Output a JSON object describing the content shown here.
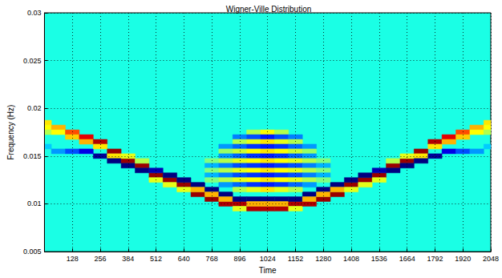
{
  "chart_data": {
    "type": "heatmap",
    "title": "Wigner-Ville Distribution",
    "x_label": "Time",
    "y_label": "Frequency (Hz)",
    "xlim": [
      0,
      2048
    ],
    "xticks": [
      128,
      256,
      384,
      512,
      640,
      768,
      896,
      1024,
      1152,
      1280,
      1408,
      1536,
      1664,
      1792,
      1920,
      2048
    ],
    "ylim": [
      0.005,
      0.03
    ],
    "yticks": [
      0.005,
      0.01,
      0.015,
      0.02,
      0.025,
      0.03
    ],
    "grid": true,
    "color_range": [
      -0.8,
      1.2
    ],
    "cells": [
      [
        0,
        0.0185,
        0.5
      ],
      [
        0,
        0.018,
        0.45
      ],
      [
        0,
        0.0175,
        0.3
      ],
      [
        0,
        0.016,
        -0.15
      ],
      [
        64,
        0.018,
        0.6
      ],
      [
        64,
        0.0175,
        0.45
      ],
      [
        64,
        0.0155,
        -0.25
      ],
      [
        128,
        0.0175,
        0.8
      ],
      [
        128,
        0.017,
        0.55
      ],
      [
        128,
        0.0155,
        -0.4
      ],
      [
        192,
        0.017,
        1.0
      ],
      [
        192,
        0.0165,
        0.6
      ],
      [
        192,
        0.0155,
        -0.6
      ],
      [
        256,
        0.0165,
        1.1
      ],
      [
        256,
        0.016,
        0.5
      ],
      [
        256,
        0.015,
        -0.75
      ],
      [
        320,
        0.0155,
        1.15
      ],
      [
        320,
        0.015,
        0.5
      ],
      [
        320,
        0.0145,
        -0.8
      ],
      [
        384,
        0.0145,
        1.15
      ],
      [
        384,
        0.015,
        0.4
      ],
      [
        384,
        0.014,
        -0.8
      ],
      [
        448,
        0.014,
        1.15
      ],
      [
        448,
        0.0145,
        0.3
      ],
      [
        448,
        0.0135,
        -0.8
      ],
      [
        512,
        0.013,
        1.15
      ],
      [
        512,
        0.0135,
        -0.7
      ],
      [
        512,
        0.0125,
        0.4
      ],
      [
        576,
        0.0125,
        1.15
      ],
      [
        576,
        0.013,
        -0.8
      ],
      [
        576,
        0.012,
        0.4
      ],
      [
        640,
        0.012,
        1.15
      ],
      [
        640,
        0.0125,
        -0.8
      ],
      [
        640,
        0.0115,
        0.4
      ],
      [
        704,
        0.011,
        1.15
      ],
      [
        704,
        0.012,
        -0.8
      ],
      [
        704,
        0.0115,
        0.6
      ],
      [
        768,
        0.0105,
        1.15
      ],
      [
        768,
        0.0115,
        -0.8
      ],
      [
        768,
        0.011,
        0.6
      ],
      [
        832,
        0.01,
        1.1
      ],
      [
        832,
        0.011,
        -0.8
      ],
      [
        832,
        0.0105,
        0.6
      ],
      [
        896,
        0.01,
        1.1
      ],
      [
        896,
        0.0105,
        -0.8
      ],
      [
        896,
        0.0095,
        0.4
      ],
      [
        960,
        0.0095,
        1.1
      ],
      [
        960,
        0.0105,
        -0.8
      ],
      [
        960,
        0.01,
        0.6
      ],
      [
        1024,
        0.0095,
        1.1
      ],
      [
        1024,
        0.0105,
        -0.8
      ],
      [
        1024,
        0.01,
        0.6
      ],
      [
        1088,
        0.0095,
        1.1
      ],
      [
        1088,
        0.0105,
        -0.8
      ],
      [
        1088,
        0.01,
        0.6
      ],
      [
        1152,
        0.01,
        1.1
      ],
      [
        1152,
        0.0105,
        -0.8
      ],
      [
        1152,
        0.0095,
        0.4
      ],
      [
        1216,
        0.01,
        1.1
      ],
      [
        1216,
        0.011,
        -0.8
      ],
      [
        1216,
        0.0105,
        0.6
      ],
      [
        1280,
        0.0105,
        1.15
      ],
      [
        1280,
        0.0115,
        -0.8
      ],
      [
        1280,
        0.011,
        0.6
      ],
      [
        1344,
        0.011,
        1.15
      ],
      [
        1344,
        0.012,
        -0.8
      ],
      [
        1344,
        0.0115,
        0.6
      ],
      [
        1408,
        0.012,
        1.15
      ],
      [
        1408,
        0.0125,
        -0.8
      ],
      [
        1408,
        0.0115,
        0.4
      ],
      [
        1472,
        0.0125,
        1.15
      ],
      [
        1472,
        0.013,
        -0.8
      ],
      [
        1472,
        0.012,
        0.4
      ],
      [
        1536,
        0.013,
        1.15
      ],
      [
        1536,
        0.0135,
        -0.7
      ],
      [
        1536,
        0.0125,
        0.4
      ],
      [
        1600,
        0.014,
        1.15
      ],
      [
        1600,
        0.0145,
        0.3
      ],
      [
        1600,
        0.0135,
        -0.8
      ],
      [
        1664,
        0.0145,
        1.15
      ],
      [
        1664,
        0.015,
        0.4
      ],
      [
        1664,
        0.014,
        -0.8
      ],
      [
        1728,
        0.0155,
        1.15
      ],
      [
        1728,
        0.015,
        0.5
      ],
      [
        1728,
        0.0145,
        -0.8
      ],
      [
        1792,
        0.0165,
        1.1
      ],
      [
        1792,
        0.016,
        0.5
      ],
      [
        1792,
        0.015,
        -0.75
      ],
      [
        1856,
        0.017,
        1.0
      ],
      [
        1856,
        0.0165,
        0.6
      ],
      [
        1856,
        0.0155,
        -0.6
      ],
      [
        1920,
        0.0175,
        0.8
      ],
      [
        1920,
        0.017,
        0.55
      ],
      [
        1920,
        0.0155,
        -0.4
      ],
      [
        1984,
        0.018,
        0.6
      ],
      [
        1984,
        0.0175,
        0.45
      ],
      [
        1984,
        0.0155,
        -0.25
      ],
      [
        2048,
        0.0185,
        0.5
      ],
      [
        2048,
        0.018,
        0.45
      ],
      [
        2048,
        0.0175,
        0.3
      ],
      [
        2048,
        0.016,
        -0.15
      ],
      [
        960,
        0.0175,
        0.3
      ],
      [
        1024,
        0.0175,
        0.45
      ],
      [
        1088,
        0.0175,
        0.3
      ],
      [
        896,
        0.017,
        -0.3
      ],
      [
        960,
        0.017,
        -0.4
      ],
      [
        1024,
        0.017,
        -0.5
      ],
      [
        1088,
        0.017,
        -0.4
      ],
      [
        1152,
        0.017,
        -0.3
      ],
      [
        896,
        0.0165,
        0.3
      ],
      [
        960,
        0.0165,
        0.4
      ],
      [
        1024,
        0.0165,
        0.5
      ],
      [
        1088,
        0.0165,
        0.4
      ],
      [
        1152,
        0.0165,
        0.3
      ],
      [
        832,
        0.016,
        -0.25
      ],
      [
        896,
        0.016,
        -0.35
      ],
      [
        960,
        0.016,
        -0.45
      ],
      [
        1024,
        0.016,
        -0.5
      ],
      [
        1088,
        0.016,
        -0.45
      ],
      [
        1152,
        0.016,
        -0.35
      ],
      [
        1216,
        0.016,
        -0.25
      ],
      [
        832,
        0.0155,
        0.25
      ],
      [
        896,
        0.0155,
        0.35
      ],
      [
        960,
        0.0155,
        0.45
      ],
      [
        1024,
        0.0155,
        0.5
      ],
      [
        1088,
        0.0155,
        0.45
      ],
      [
        1152,
        0.0155,
        0.35
      ],
      [
        1216,
        0.0155,
        0.25
      ],
      [
        832,
        0.015,
        -0.25
      ],
      [
        896,
        0.015,
        -0.35
      ],
      [
        960,
        0.015,
        -0.45
      ],
      [
        1024,
        0.015,
        -0.5
      ],
      [
        1088,
        0.015,
        -0.45
      ],
      [
        1152,
        0.015,
        -0.35
      ],
      [
        1216,
        0.015,
        -0.25
      ],
      [
        768,
        0.0145,
        0.2
      ],
      [
        832,
        0.0145,
        0.3
      ],
      [
        896,
        0.0145,
        0.4
      ],
      [
        960,
        0.0145,
        0.45
      ],
      [
        1024,
        0.0145,
        0.5
      ],
      [
        1088,
        0.0145,
        0.45
      ],
      [
        1152,
        0.0145,
        0.4
      ],
      [
        1216,
        0.0145,
        0.3
      ],
      [
        1280,
        0.0145,
        0.2
      ],
      [
        768,
        0.014,
        -0.2
      ],
      [
        832,
        0.014,
        -0.3
      ],
      [
        896,
        0.014,
        -0.4
      ],
      [
        960,
        0.014,
        -0.45
      ],
      [
        1024,
        0.014,
        -0.5
      ],
      [
        1088,
        0.014,
        -0.45
      ],
      [
        1152,
        0.014,
        -0.4
      ],
      [
        1216,
        0.014,
        -0.3
      ],
      [
        1280,
        0.014,
        -0.2
      ],
      [
        768,
        0.0135,
        0.2
      ],
      [
        832,
        0.0135,
        0.3
      ],
      [
        896,
        0.0135,
        0.4
      ],
      [
        960,
        0.0135,
        0.45
      ],
      [
        1024,
        0.0135,
        0.5
      ],
      [
        1088,
        0.0135,
        0.45
      ],
      [
        1152,
        0.0135,
        0.4
      ],
      [
        1216,
        0.0135,
        0.3
      ],
      [
        1280,
        0.0135,
        0.2
      ],
      [
        768,
        0.013,
        -0.2
      ],
      [
        832,
        0.013,
        -0.3
      ],
      [
        896,
        0.013,
        -0.4
      ],
      [
        960,
        0.013,
        -0.45
      ],
      [
        1024,
        0.013,
        -0.5
      ],
      [
        1088,
        0.013,
        -0.45
      ],
      [
        1152,
        0.013,
        -0.4
      ],
      [
        1216,
        0.013,
        -0.3
      ],
      [
        1280,
        0.013,
        -0.2
      ],
      [
        768,
        0.0125,
        0.2
      ],
      [
        832,
        0.0125,
        0.3
      ],
      [
        896,
        0.0125,
        0.4
      ],
      [
        960,
        0.0125,
        0.45
      ],
      [
        1024,
        0.0125,
        0.5
      ],
      [
        1088,
        0.0125,
        0.45
      ],
      [
        1152,
        0.0125,
        0.4
      ],
      [
        1216,
        0.0125,
        0.3
      ],
      [
        1280,
        0.0125,
        0.2
      ],
      [
        832,
        0.012,
        -0.25
      ],
      [
        896,
        0.012,
        -0.35
      ],
      [
        960,
        0.012,
        -0.45
      ],
      [
        1024,
        0.012,
        -0.5
      ],
      [
        1088,
        0.012,
        -0.45
      ],
      [
        1152,
        0.012,
        -0.35
      ],
      [
        1216,
        0.012,
        -0.25
      ],
      [
        896,
        0.0115,
        0.3
      ],
      [
        960,
        0.0115,
        0.4
      ],
      [
        1024,
        0.0115,
        0.5
      ],
      [
        1088,
        0.0115,
        0.4
      ],
      [
        1152,
        0.0115,
        0.3
      ]
    ]
  }
}
